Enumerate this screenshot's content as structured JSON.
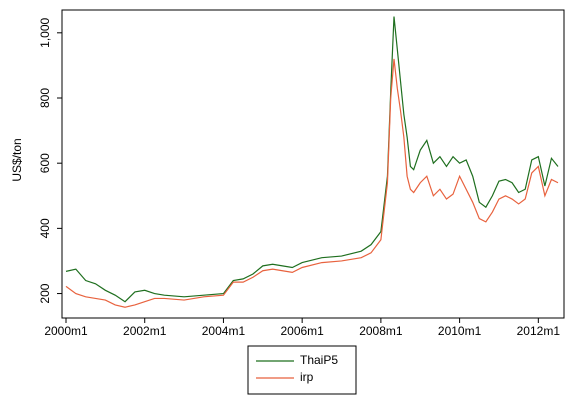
{
  "chart_data": {
    "type": "line",
    "y_label": "US$/ton",
    "x": [
      "2000m1",
      "2000m4",
      "2000m7",
      "2000m10",
      "2001m1",
      "2001m4",
      "2001m7",
      "2001m10",
      "2002m1",
      "2002m4",
      "2002m7",
      "2003m1",
      "2003m7",
      "2004m1",
      "2004m4",
      "2004m7",
      "2004m10",
      "2005m1",
      "2005m4",
      "2005m7",
      "2005m10",
      "2006m1",
      "2006m7",
      "2007m1",
      "2007m7",
      "2007m10",
      "2008m1",
      "2008m3",
      "2008m4",
      "2008m5",
      "2008m6",
      "2008m7",
      "2008m8",
      "2008m9",
      "2008m10",
      "2008m11",
      "2009m1",
      "2009m3",
      "2009m5",
      "2009m7",
      "2009m9",
      "2009m11",
      "2010m1",
      "2010m3",
      "2010m5",
      "2010m7",
      "2010m9",
      "2010m11",
      "2011m1",
      "2011m3",
      "2011m5",
      "2011m7",
      "2011m9",
      "2011m11",
      "2012m1",
      "2012m3",
      "2012m5",
      "2012m7"
    ],
    "series": [
      {
        "name": "ThaiP5",
        "color": "#1f6f1f",
        "values": [
          268,
          275,
          240,
          230,
          210,
          195,
          175,
          205,
          210,
          200,
          195,
          190,
          195,
          200,
          240,
          245,
          260,
          285,
          290,
          285,
          280,
          295,
          310,
          315,
          330,
          350,
          390,
          560,
          820,
          1050,
          950,
          850,
          750,
          680,
          590,
          580,
          640,
          670,
          600,
          620,
          590,
          620,
          600,
          610,
          560,
          480,
          465,
          500,
          545,
          550,
          540,
          510,
          520,
          610,
          620,
          530,
          615,
          590
        ]
      },
      {
        "name": "irp",
        "color": "#e8623e",
        "values": [
          222,
          200,
          190,
          185,
          180,
          165,
          158,
          165,
          175,
          185,
          185,
          180,
          190,
          195,
          235,
          235,
          250,
          270,
          275,
          270,
          265,
          280,
          295,
          300,
          310,
          325,
          365,
          540,
          800,
          920,
          830,
          760,
          680,
          560,
          520,
          510,
          540,
          560,
          500,
          520,
          490,
          505,
          560,
          520,
          480,
          430,
          420,
          450,
          490,
          500,
          490,
          475,
          490,
          570,
          590,
          500,
          550,
          540
        ]
      }
    ],
    "xlim": [
      "2000m1",
      "2012m7"
    ],
    "xticks": [
      "2000m1",
      "2002m1",
      "2004m1",
      "2006m1",
      "2008m1",
      "2010m1",
      "2012m1"
    ],
    "ylim": [
      125,
      1070
    ],
    "yticks": [
      200,
      400,
      600,
      800,
      {
        "value": 1000,
        "label": "1,000"
      }
    ]
  }
}
